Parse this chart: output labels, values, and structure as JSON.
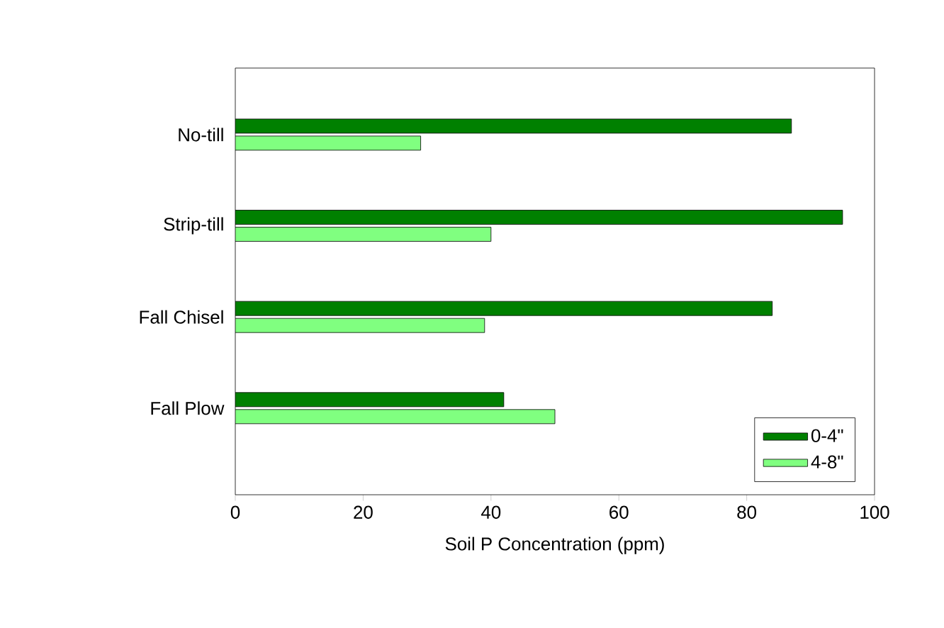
{
  "chart_data": {
    "type": "bar",
    "orientation": "horizontal",
    "xlabel": "Soil P Concentration (ppm)",
    "categories": [
      "No-till",
      "Strip-till",
      "Fall Chisel",
      "Fall Plow"
    ],
    "series": [
      {
        "name": "0-4\"",
        "color": "#008000",
        "values": [
          87,
          95,
          84,
          42
        ]
      },
      {
        "name": "4-8\"",
        "color": "#80ff80",
        "values": [
          29,
          40,
          39,
          50
        ]
      }
    ],
    "xlim": [
      0,
      100
    ],
    "xticks": [
      0,
      20,
      40,
      60,
      80,
      100
    ],
    "grid": false,
    "legend": "bottom right"
  }
}
